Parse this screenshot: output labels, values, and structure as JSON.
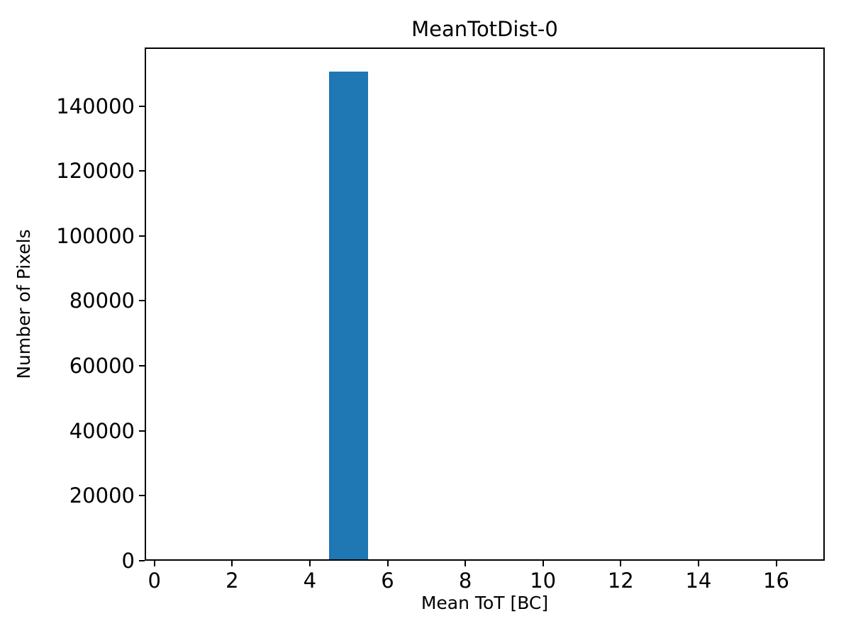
{
  "figure": {
    "background": "#ffffff",
    "text_color": "#000000"
  },
  "chart_data": {
    "type": "bar",
    "title": "MeanTotDist-0",
    "xlabel": "Mean ToT [BC]",
    "ylabel": "Number of Pixels",
    "xlim": [
      -0.25,
      17.25
    ],
    "ylim": [
      0,
      158000
    ],
    "xticks": [
      0,
      2,
      4,
      6,
      8,
      10,
      12,
      14,
      16
    ],
    "yticks": [
      0,
      20000,
      40000,
      60000,
      80000,
      100000,
      120000,
      140000
    ],
    "grid": false,
    "legend_position": "none",
    "bar_color": "#1f77b4",
    "bin_width": 1,
    "bars": [
      {
        "x_start": 4.5,
        "x_end": 5.5,
        "value": 150500
      }
    ]
  }
}
